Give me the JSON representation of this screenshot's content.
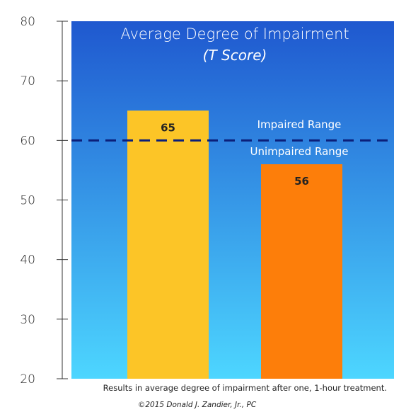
{
  "chart_data": {
    "type": "bar",
    "title": "Average Degree of Impairment",
    "subtitle": "(T Score)",
    "categories": [
      "",
      ""
    ],
    "values": [
      65,
      56
    ],
    "data_labels": [
      "65",
      "56"
    ],
    "bar_colors": [
      "#fcc527",
      "#fd7e0a"
    ],
    "ylim": [
      20,
      80
    ],
    "yticks": [
      20,
      30,
      40,
      50,
      60,
      70,
      80
    ],
    "xlabel": "",
    "ylabel": "",
    "grid": false,
    "reference_line": {
      "value": 60,
      "style": "dashed",
      "color": "#0b1f7a",
      "label_above": "Impaired Range",
      "label_below": "Unimpaired Range"
    },
    "background_gradient": [
      "#1f58cf",
      "#4dd6ff"
    ]
  },
  "caption": "Results in average degree of impairment after one, 1-hour treatment.",
  "credit": "©2015 Donald J. Zandier, Jr., PC"
}
